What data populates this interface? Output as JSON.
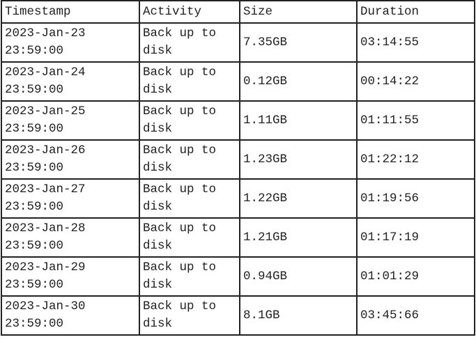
{
  "table": {
    "headers": [
      "Timestamp",
      "Activity",
      "Size",
      "Duration"
    ],
    "rows": [
      {
        "timestamp": "2023-Jan-23\n23:59:00",
        "activity": "Back up to\ndisk",
        "size": "7.35GB",
        "duration": "03:14:55"
      },
      {
        "timestamp": "2023-Jan-24\n23:59:00",
        "activity": "Back up to\ndisk",
        "size": "0.12GB",
        "duration": "00:14:22"
      },
      {
        "timestamp": "2023-Jan-25\n23:59:00",
        "activity": "Back up to\ndisk",
        "size": "1.11GB",
        "duration": "01:11:55"
      },
      {
        "timestamp": "2023-Jan-26\n23:59:00",
        "activity": "Back up to\ndisk",
        "size": "1.23GB",
        "duration": "01:22:12"
      },
      {
        "timestamp": "2023-Jan-27\n23:59:00",
        "activity": "Back up to\ndisk",
        "size": "1.22GB",
        "duration": "01:19:56"
      },
      {
        "timestamp": "2023-Jan-28\n23:59:00",
        "activity": "Back up to\ndisk",
        "size": "1.21GB",
        "duration": "01:17:19"
      },
      {
        "timestamp": "2023-Jan-29\n23:59:00",
        "activity": "Back up to\ndisk",
        "size": "0.94GB",
        "duration": "01:01:29"
      },
      {
        "timestamp": "2023-Jan-30\n23:59:00",
        "activity": "Back up to\ndisk",
        "size": "8.1GB",
        "duration": "03:45:66"
      }
    ]
  }
}
